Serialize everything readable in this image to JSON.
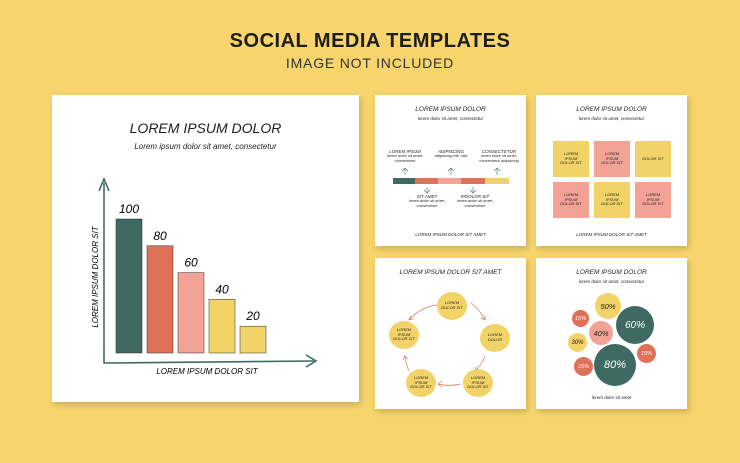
{
  "header": {
    "title": "SOCIAL MEDIA TEMPLATES",
    "subtitle": "IMAGE NOT INCLUDED"
  },
  "colors": {
    "background": "#f7d56c",
    "teal": "#3e6a63",
    "coral": "#df7159",
    "pink": "#f2a396",
    "yellow": "#f2d367"
  },
  "card1": {
    "title": "LOREM IPSUM DOLOR",
    "subtitle": "Lorem ipsum dolor sit amet, consectetur",
    "chart_data": {
      "type": "bar",
      "categories": [
        "",
        "",
        "",
        "",
        ""
      ],
      "values": [
        100,
        80,
        60,
        40,
        20
      ],
      "value_labels": [
        "100",
        "80",
        "60",
        "40",
        "20"
      ],
      "colors": [
        "#3e6a63",
        "#df7159",
        "#f2a396",
        "#f2d367",
        "#f2d367"
      ],
      "xlabel": "LOREM IPSUM DOLOR SIT",
      "ylabel": "LOREM IPSUM DOLOR SIT",
      "ylim": [
        0,
        100
      ]
    }
  },
  "card2": {
    "title": "LOREM IPSUM DOLOR",
    "subtitle": "lorem dolor sit amet, consectetur",
    "top": [
      {
        "head": "LOREM IPSUM",
        "body": "lorem dolor sit amet, consectetur"
      },
      {
        "head": "ADIPISCING",
        "body": "adipiscing elit, sed"
      },
      {
        "head": "CONSECTETUR",
        "body": "lorem dolor sit amet, consectetur adipiscing"
      }
    ],
    "bottom": [
      {
        "head": "SIT AMET",
        "body": "lorem dolor sit amet, consectetur"
      },
      {
        "head": "IPDOLOR SIT",
        "body": "lorem dolor sit amet, consectetur"
      }
    ],
    "footer": "LOREM IPSUM DOLOR SIT AMET"
  },
  "card3": {
    "title": "LOREM IPSUM DOLOR",
    "subtitle": "lorem dolor sit amet, consectetur",
    "tiles": [
      {
        "text": "LOREM IPSUM DOLOR SIT"
      },
      {
        "text": "LOREM IPSUM DOLOR SIT"
      },
      {
        "text": "DOLOR SIT"
      },
      {
        "text": "LOREM IPSUM DOLOR SIT"
      },
      {
        "text": "LOREM IPSUM DOLOR SIT"
      },
      {
        "text": "LOREM IPSUM DOLOR SIT"
      }
    ],
    "footer": "LOREM IPSUM DOLOR SIT AMET"
  },
  "card4": {
    "title": "LOREM IPSUM DOLOR SIT AMET",
    "nodes": [
      {
        "text": "LOREM DOLOR SIT"
      },
      {
        "text": "LOREM DOLOR"
      },
      {
        "text": "LOREM IPSUM DOLOR SIT"
      },
      {
        "text": "LOREM IPSUM DOLOR SIT"
      },
      {
        "text": "LOREM IPSUM DOLOR SIT"
      }
    ]
  },
  "card5": {
    "title": "LOREM IPSUM DOLOR",
    "subtitle": "lorem dolor sit amet, consectetur",
    "bubbles": [
      "50%",
      "15%",
      "40%",
      "60%",
      "30%",
      "15%",
      "80%",
      "15%"
    ],
    "footer": "lorem dolor sit amet"
  }
}
